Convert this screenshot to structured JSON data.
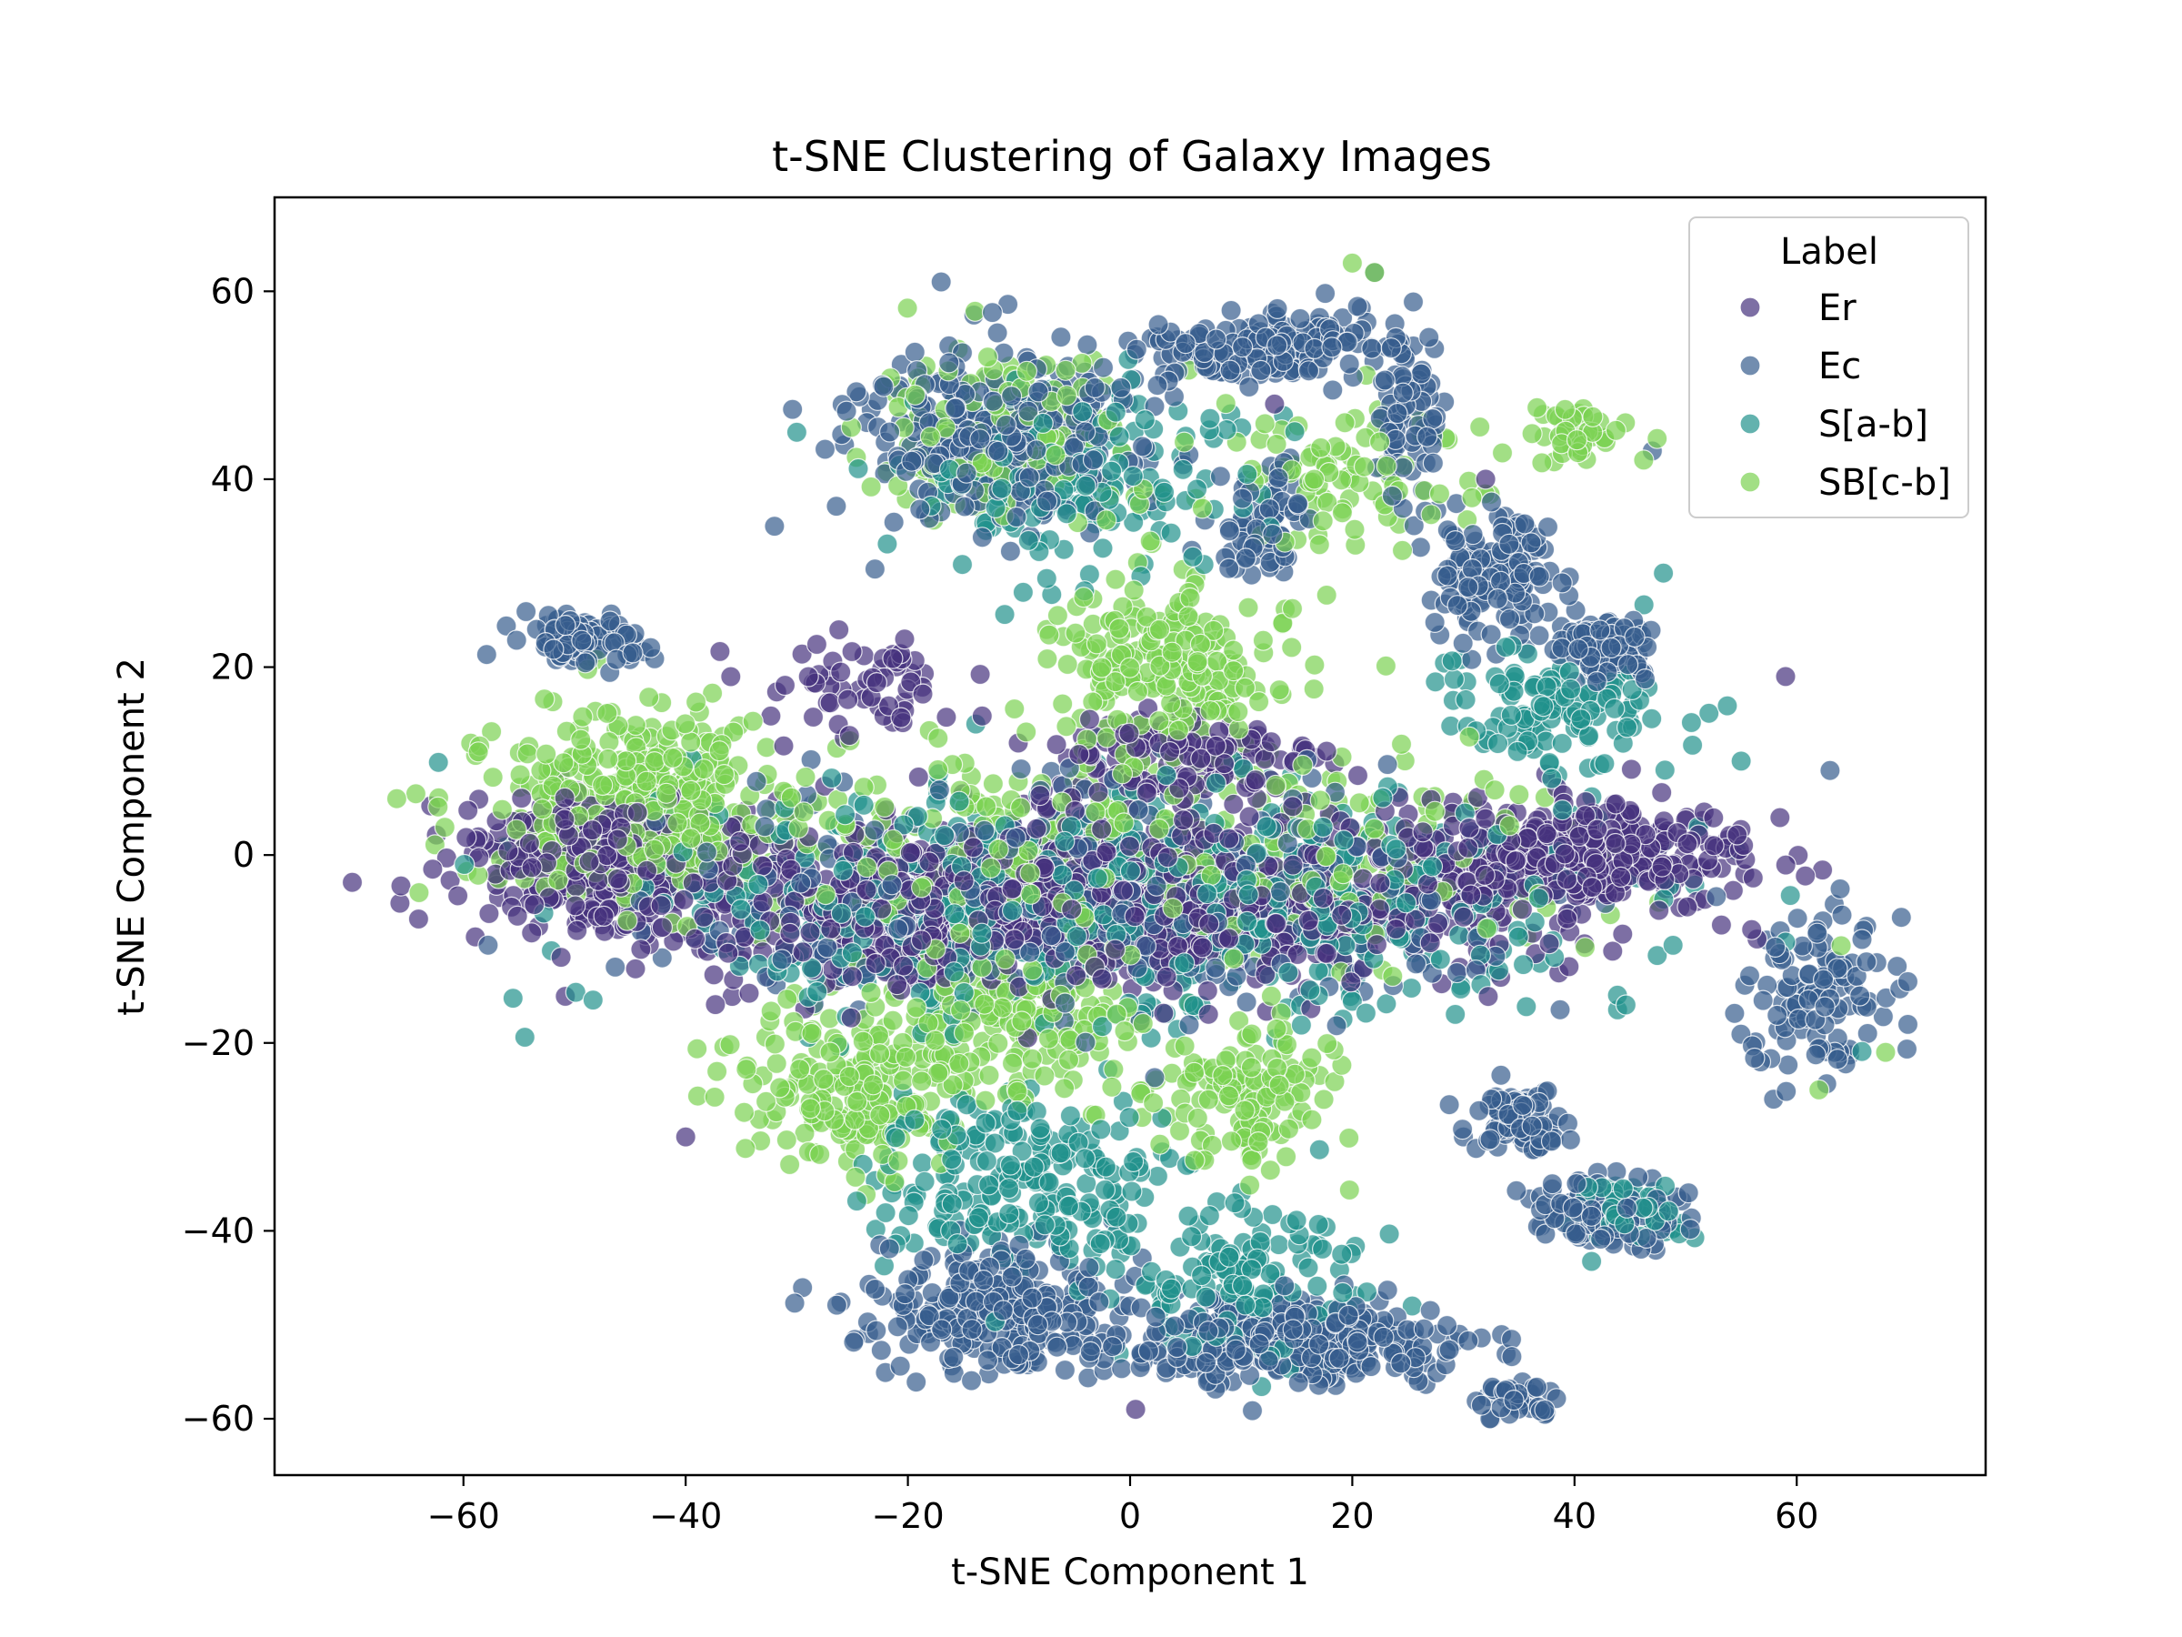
{
  "chart_data": {
    "type": "scatter",
    "title": "t-SNE Clustering of Galaxy Images",
    "xlabel": "t-SNE Component 1",
    "ylabel": "t-SNE Component 2",
    "xlim": [
      -77,
      77
    ],
    "ylim": [
      -66,
      70
    ],
    "xticks": [
      -60,
      -40,
      -20,
      0,
      20,
      40,
      60
    ],
    "yticks": [
      -60,
      -40,
      -20,
      0,
      20,
      40,
      60
    ],
    "xtick_labels": [
      "−60",
      "−40",
      "−20",
      "0",
      "20",
      "40",
      "60"
    ],
    "ytick_labels": [
      "−60",
      "−40",
      "−20",
      "0",
      "20",
      "40",
      "60"
    ],
    "grid": false,
    "marker_alpha": 0.7,
    "legend": {
      "title": "Label",
      "placement": "upper right"
    },
    "series": [
      {
        "name": "Er",
        "color": "#46327e",
        "clusters": [
          {
            "cx": -5,
            "cy": -5,
            "sx": 38,
            "sy": 8,
            "n": 1100
          },
          {
            "cx": 40,
            "cy": 0,
            "sx": 14,
            "sy": 5,
            "n": 380
          },
          {
            "cx": -48,
            "cy": 0,
            "sx": 10,
            "sy": 6,
            "n": 320
          },
          {
            "cx": 5,
            "cy": 10,
            "sx": 12,
            "sy": 5,
            "n": 140
          },
          {
            "cx": -25,
            "cy": 18,
            "sx": 8,
            "sy": 5,
            "n": 60
          }
        ],
        "points": [
          [
            0.5,
            -59
          ],
          [
            59,
            19
          ],
          [
            13,
            48
          ],
          [
            32,
            40
          ],
          [
            -27,
            18
          ],
          [
            -40,
            -30
          ]
        ]
      },
      {
        "name": "Ec",
        "color": "#365c8d",
        "clusters": [
          {
            "cx": 15,
            "cy": -52,
            "sx": 15,
            "sy": 4,
            "n": 320
          },
          {
            "cx": -12,
            "cy": -48,
            "sx": 10,
            "sy": 6,
            "n": 260
          },
          {
            "cx": -12,
            "cy": 45,
            "sx": 12,
            "sy": 9,
            "n": 320
          },
          {
            "cx": 12,
            "cy": 54,
            "sx": 8,
            "sy": 3.5,
            "n": 160
          },
          {
            "cx": 25,
            "cy": 47,
            "sx": 3,
            "sy": 9,
            "n": 80
          },
          {
            "cx": 33,
            "cy": 30,
            "sx": 5,
            "sy": 6,
            "n": 130
          },
          {
            "cx": 12,
            "cy": 35,
            "sx": 4,
            "sy": 5,
            "n": 70
          },
          {
            "cx": 43,
            "cy": 22,
            "sx": 4,
            "sy": 3,
            "n": 110
          },
          {
            "cx": 43,
            "cy": -38,
            "sx": 6,
            "sy": 3,
            "n": 130
          },
          {
            "cx": 35,
            "cy": -28,
            "sx": 4,
            "sy": 3,
            "n": 80
          },
          {
            "cx": 62,
            "cy": -14,
            "sx": 6,
            "sy": 8,
            "n": 110
          },
          {
            "cx": -49,
            "cy": 23,
            "sx": 6,
            "sy": 2.5,
            "n": 90
          },
          {
            "cx": 35,
            "cy": -58,
            "sx": 3,
            "sy": 1.5,
            "n": 40
          },
          {
            "cx": -5,
            "cy": -5,
            "sx": 34,
            "sy": 10,
            "n": 450
          }
        ],
        "points": [
          [
            22,
            62
          ],
          [
            -17,
            61
          ],
          [
            47,
            43
          ],
          [
            -32,
            35
          ],
          [
            66,
            -8
          ],
          [
            63,
            9
          ]
        ]
      },
      {
        "name": "S[a-b]",
        "color": "#21918c",
        "clusters": [
          {
            "cx": 0,
            "cy": -5,
            "sx": 38,
            "sy": 11,
            "n": 700
          },
          {
            "cx": -10,
            "cy": -35,
            "sx": 12,
            "sy": 9,
            "n": 220
          },
          {
            "cx": 10,
            "cy": -45,
            "sx": 10,
            "sy": 8,
            "n": 140
          },
          {
            "cx": -5,
            "cy": 40,
            "sx": 14,
            "sy": 10,
            "n": 160
          },
          {
            "cx": 38,
            "cy": 15,
            "sx": 10,
            "sy": 6,
            "n": 120
          },
          {
            "cx": 45,
            "cy": -38,
            "sx": 5,
            "sy": 3,
            "n": 60
          }
        ],
        "points": [
          [
            48,
            30
          ],
          [
            -30,
            45
          ],
          [
            55,
            10
          ]
        ]
      },
      {
        "name": "SB[c-b]",
        "color": "#7ad151",
        "clusters": [
          {
            "cx": -45,
            "cy": 5,
            "sx": 12,
            "sy": 9,
            "n": 380
          },
          {
            "cx": -25,
            "cy": -25,
            "sx": 10,
            "sy": 8,
            "n": 200
          },
          {
            "cx": 3,
            "cy": 20,
            "sx": 10,
            "sy": 8,
            "n": 200
          },
          {
            "cx": -10,
            "cy": -18,
            "sx": 10,
            "sy": 7,
            "n": 160
          },
          {
            "cx": 10,
            "cy": -25,
            "sx": 8,
            "sy": 7,
            "n": 130
          },
          {
            "cx": -12,
            "cy": 45,
            "sx": 12,
            "sy": 8,
            "n": 150
          },
          {
            "cx": 0,
            "cy": 0,
            "sx": 35,
            "sy": 10,
            "n": 400
          },
          {
            "cx": 20,
            "cy": 40,
            "sx": 10,
            "sy": 8,
            "n": 90
          },
          {
            "cx": 40,
            "cy": 45,
            "sx": 5,
            "sy": 3,
            "n": 40
          }
        ],
        "points": [
          [
            20,
            63
          ],
          [
            22,
            62
          ],
          [
            -64,
            -4
          ],
          [
            -66,
            6
          ],
          [
            68,
            -21
          ],
          [
            62,
            -25
          ]
        ]
      }
    ]
  }
}
